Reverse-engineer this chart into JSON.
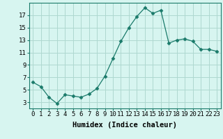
{
  "x": [
    0,
    1,
    2,
    3,
    4,
    5,
    6,
    7,
    8,
    9,
    10,
    11,
    12,
    13,
    14,
    15,
    16,
    17,
    18,
    19,
    20,
    21,
    22,
    23
  ],
  "y": [
    6.2,
    5.5,
    3.8,
    2.8,
    4.2,
    4.0,
    3.8,
    4.3,
    5.2,
    7.2,
    10.0,
    12.8,
    15.0,
    16.8,
    18.2,
    17.3,
    17.8,
    12.5,
    13.0,
    13.2,
    12.8,
    11.5,
    11.5,
    11.2
  ],
  "line_color": "#1a7a6a",
  "marker": "D",
  "marker_size": 2.5,
  "bg_color": "#d7f5f0",
  "grid_color": "#aed8d0",
  "xlabel": "Humidex (Indice chaleur)",
  "xlim": [
    -0.5,
    23.5
  ],
  "ylim": [
    2,
    19
  ],
  "yticks": [
    3,
    5,
    7,
    9,
    11,
    13,
    15,
    17
  ],
  "xtick_labels": [
    "0",
    "1",
    "2",
    "3",
    "4",
    "5",
    "6",
    "7",
    "8",
    "9",
    "10",
    "11",
    "12",
    "13",
    "14",
    "15",
    "16",
    "17",
    "18",
    "19",
    "20",
    "21",
    "22",
    "23"
  ],
  "tick_fontsize": 6.5,
  "xlabel_fontsize": 7.5
}
